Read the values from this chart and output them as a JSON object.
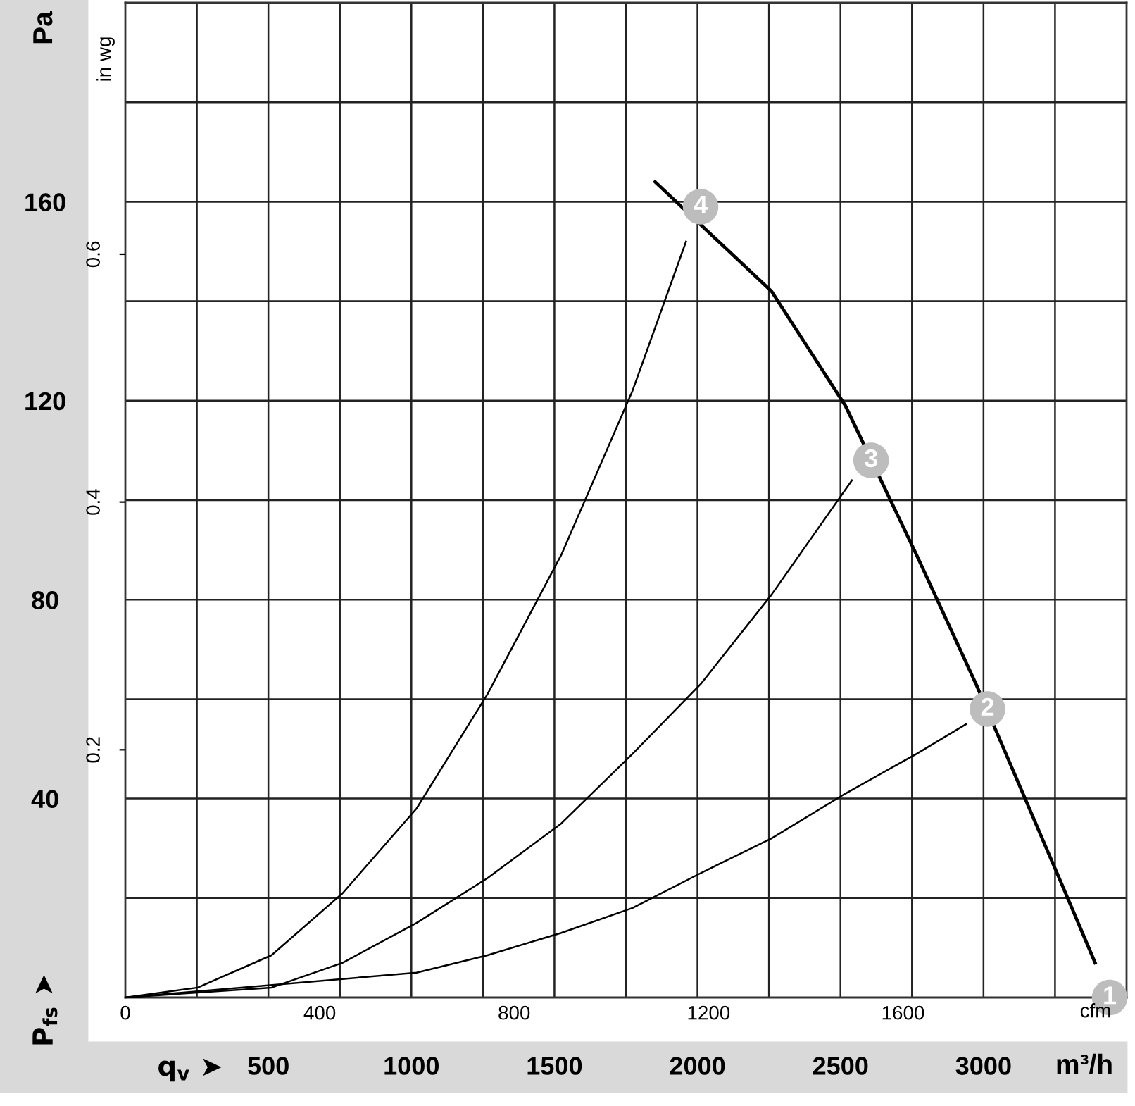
{
  "chart_data": {
    "type": "line",
    "xlabel": "q$_{v}$ ➤",
    "ylabel": "P$_{fs}$ ➤",
    "y2label": "in wg",
    "x2label": "cfm",
    "xlim": [
      0,
      3500
    ],
    "ylim": [
      0,
      200
    ],
    "y2lim": [
      0,
      0.803
    ],
    "x2lim": [
      0,
      2060
    ],
    "xticks": [
      {
        "value": 250,
        "label": null
      },
      500,
      {
        "value": 750,
        "label": null
      },
      1000,
      {
        "value": 1250,
        "label": null
      },
      1500,
      {
        "value": 1750,
        "label": null
      },
      2000,
      {
        "value": 2250,
        "label": null
      },
      2500,
      {
        "value": 2750,
        "label": null
      },
      3000,
      {
        "value": 3250,
        "label": null
      }
    ],
    "yticks": [
      {
        "value": 20,
        "label": null
      },
      40,
      {
        "value": 60,
        "label": null
      },
      80,
      {
        "value": 100,
        "label": null
      },
      120,
      {
        "value": 140,
        "label": null
      },
      160,
      {
        "value": 180,
        "label": null
      }
    ],
    "y2ticks": [
      0.2,
      0.4,
      0.6
    ],
    "x2ticks": [
      0,
      400,
      800,
      1200,
      1600
    ],
    "grid": true,
    "marker": "none",
    "line_style": "solid",
    "series": [
      {
        "color": "#000000",
        "x": [
          1852,
          2259,
          2517,
          2766,
          2974,
          3272,
          3390
        ],
        "values": [
          164,
          142,
          119,
          89,
          63,
          23,
          7
        ]
      },
      {
        "color": "#000000",
        "x": [
          0,
          253,
          511,
          760,
          1018,
          1266,
          1524,
          1773,
          1960
        ],
        "values": [
          0,
          2,
          8.5,
          21,
          38,
          61,
          89,
          122,
          152
        ]
      },
      {
        "color": "#000000",
        "x": [
          0,
          511,
          760,
          1018,
          1266,
          1524,
          1773,
          2011,
          2259,
          2540
        ],
        "values": [
          0,
          2,
          7,
          15,
          24,
          35,
          49,
          63,
          81,
          104
        ]
      },
      {
        "color": "#000000",
        "x": [
          0,
          1018,
          1266,
          1524,
          1773,
          2011,
          2259,
          2517,
          2766,
          2940
        ],
        "values": [
          0,
          5,
          8.5,
          13,
          18,
          25,
          32,
          41,
          49,
          55
        ]
      }
    ],
    "annotations": [
      "Pa",
      "m³/h",
      {
        "text": "1",
        "x": 3441,
        "y": 0
      },
      {
        "text": "2",
        "x": 3014,
        "y": 58
      },
      {
        "text": "3",
        "x": 2607,
        "y": 108
      },
      {
        "text": "4",
        "x": 2011,
        "y": 159
      }
    ]
  }
}
